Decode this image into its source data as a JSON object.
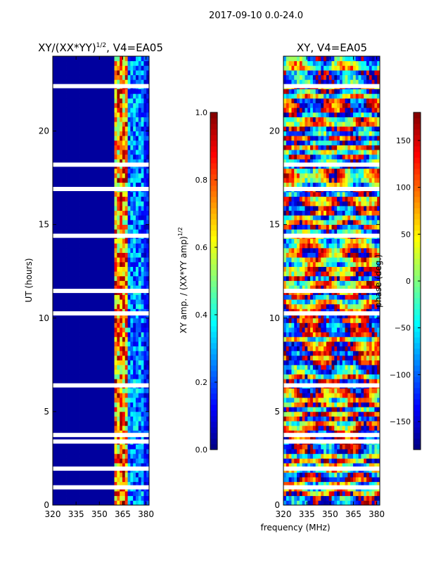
{
  "figure": {
    "suptitle": "2017-09-10 0.0-24.0",
    "xlabel": "frequency (MHz)"
  },
  "chart_data": [
    {
      "type": "heatmap",
      "title": "XY/(XX*YY)",
      "title_sup": "1/2",
      "title_suffix": ", V4=EA05",
      "ylabel": "UT (hours)",
      "xlim": [
        320,
        382
      ],
      "ylim": [
        0,
        24
      ],
      "xticks": [
        "320",
        "335",
        "350",
        "365",
        "380"
      ],
      "yticks": [
        "0",
        "5",
        "10",
        "15",
        "20"
      ],
      "colorbar": {
        "label_main": "XY amp. / (XX*YY amp)",
        "label_sup": "1/2",
        "range": [
          0.0,
          1.0
        ],
        "ticks": [
          "0.0",
          "0.2",
          "0.4",
          "0.6",
          "0.8",
          "1.0"
        ]
      }
    },
    {
      "type": "heatmap",
      "title": "XY, V4=EA05",
      "ylabel": "",
      "xlim": [
        320,
        382
      ],
      "ylim": [
        0,
        24
      ],
      "xticks": [
        "320",
        "335",
        "350",
        "365",
        "380"
      ],
      "yticks": [
        "0",
        "5",
        "10",
        "15",
        "20"
      ],
      "colorbar": {
        "label_main": "phase (deg.)",
        "range": [
          -180,
          180
        ],
        "ticks": [
          "−150",
          "−100",
          "−50",
          "0",
          "50",
          "100",
          "150"
        ]
      }
    }
  ],
  "gaps_hours": [
    0.95,
    1.95,
    3.4,
    3.75,
    6.4,
    10.25,
    11.45,
    14.4,
    16.9,
    18.2,
    22.4
  ]
}
